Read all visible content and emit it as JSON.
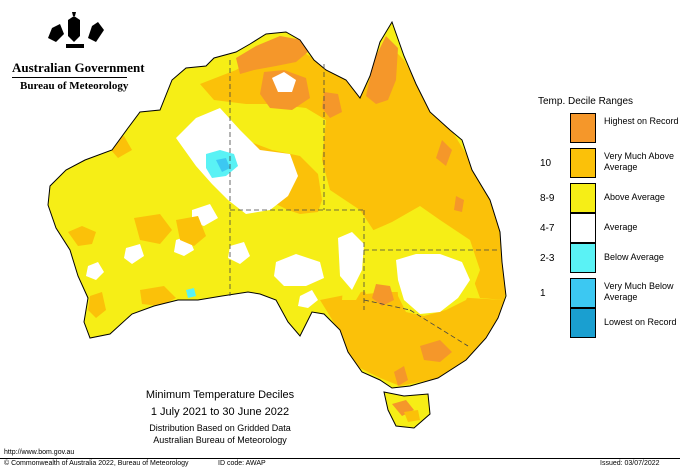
{
  "header": {
    "government": "Australian Government",
    "bureau": "Bureau of Meteorology"
  },
  "legend": {
    "title": "Temp. Decile Ranges",
    "items": [
      {
        "code": "",
        "label": "Highest on Record",
        "color": "#f5972a"
      },
      {
        "code": "10",
        "label": "Very Much Above Average",
        "color": "#fbc109"
      },
      {
        "code": "8-9",
        "label": "Above Average",
        "color": "#f6ee16"
      },
      {
        "code": "4-7",
        "label": "Average",
        "color": "#ffffff"
      },
      {
        "code": "2-3",
        "label": "Below Average",
        "color": "#5af2f5"
      },
      {
        "code": "1",
        "label": "Very Much Below Average",
        "color": "#3cc8f2"
      },
      {
        "code": "",
        "label": "Lowest on Record",
        "color": "#1a9fd0"
      }
    ]
  },
  "caption": {
    "title": "Minimum Temperature Deciles",
    "period": "1 July 2021 to 30 June 2022",
    "method": "Distribution Based on Gridded Data",
    "source": "Australian Bureau of Meteorology"
  },
  "footer": {
    "url": "http://www.bom.gov.au",
    "copyright": "© Commonwealth of Australia 2022, Bureau of Meteorology",
    "id_code": "ID code: AWAP",
    "issued": "Issued: 03/07/2022"
  }
}
